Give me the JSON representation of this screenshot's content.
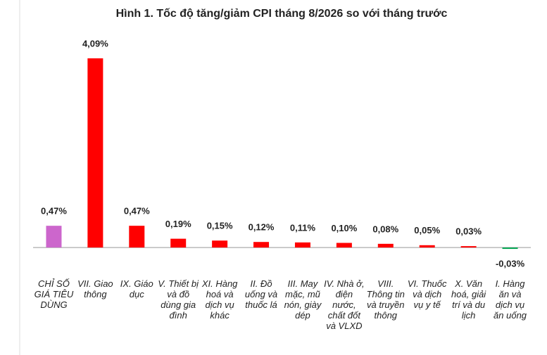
{
  "chart_data": {
    "type": "bar",
    "title": "Hình 1. Tốc độ tăng/giảm CPI tháng 8/2026 so với tháng trước",
    "categories": [
      "CHỈ SỐ GIÁ TIÊU DÙNG",
      "VII. Giao thông",
      "IX. Giáo dục",
      "V. Thiết bị và đồ dùng gia đình",
      "XI. Hàng hoá và dịch vụ khác",
      "II. Đồ uống và thuốc lá",
      "III. May mặc, mũ nón, giày dép",
      "IV. Nhà ở, điện nước, chất đốt và VLXD",
      "VIII. Thông tin và truyền thông",
      "VI. Thuốc và dịch vụ y tế",
      "X. Văn hoá, giải trí và du lịch",
      "I. Hàng ăn và dịch vụ ăn uống"
    ],
    "values": [
      0.47,
      4.09,
      0.47,
      0.19,
      0.15,
      0.12,
      0.11,
      0.1,
      0.08,
      0.05,
      0.03,
      -0.03
    ],
    "value_labels": [
      "0,47%",
      "4,09%",
      "0,47%",
      "0,19%",
      "0,15%",
      "0,12%",
      "0,11%",
      "0,10%",
      "0,08%",
      "0,05%",
      "0,03%",
      "-0,03%"
    ],
    "colors": [
      "#cc66cc",
      "#ff0000",
      "#ff0000",
      "#ff0000",
      "#ff0000",
      "#ff0000",
      "#ff0000",
      "#ff0000",
      "#ff0000",
      "#ff0000",
      "#ff0000",
      "#00a651"
    ],
    "ylim": [
      -0.5,
      4.5
    ]
  }
}
